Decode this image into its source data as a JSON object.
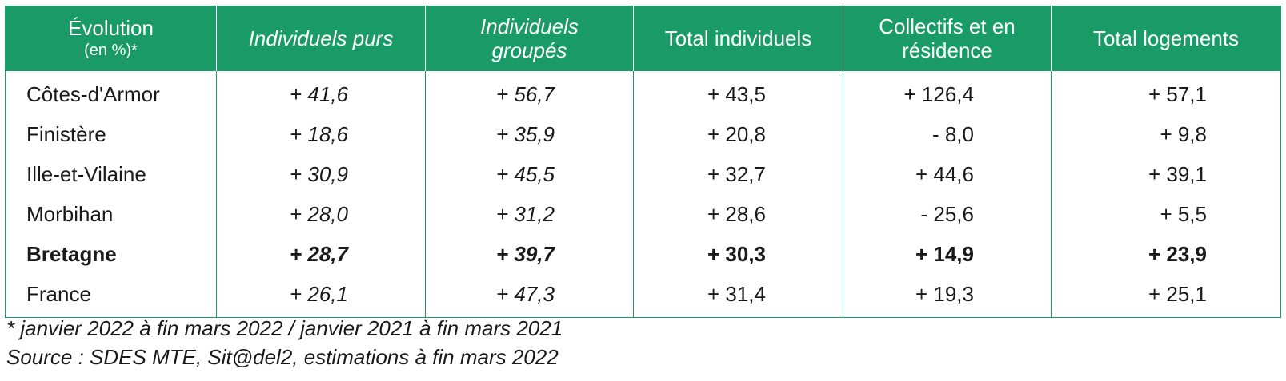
{
  "header": {
    "col0_line1": "Évolution",
    "col0_line2": "(en %)*",
    "col1": "Individuels purs",
    "col2_line1": "Individuels",
    "col2_line2": "groupés",
    "col3": "Total individuels",
    "col4_line1": "Collectifs et en",
    "col4_line2": "résidence",
    "col5": "Total logements"
  },
  "rows": [
    {
      "name": "Côtes-d'Armor",
      "v1": "+ 41,6",
      "v2": "+ 56,7",
      "v3": "+ 43,5",
      "v4": "+ 126,4",
      "v5": "+ 57,1"
    },
    {
      "name": "Finistère",
      "v1": "+ 18,6",
      "v2": "+ 35,9",
      "v3": "+ 20,8",
      "v4": "- 8,0",
      "v5": "+ 9,8"
    },
    {
      "name": "Ille-et-Vilaine",
      "v1": "+ 30,9",
      "v2": "+ 45,5",
      "v3": "+ 32,7",
      "v4": "+ 44,6",
      "v5": "+ 39,1"
    },
    {
      "name": "Morbihan",
      "v1": "+ 28,0",
      "v2": "+ 31,2",
      "v3": "+ 28,6",
      "v4": "- 25,6",
      "v5": "+ 5,5"
    },
    {
      "name": "Bretagne",
      "v1": "+ 28,7",
      "v2": "+ 39,7",
      "v3": "+ 30,3",
      "v4": "+ 14,9",
      "v5": "+ 23,9"
    },
    {
      "name": "France",
      "v1": "+ 26,1",
      "v2": "+ 47,3",
      "v3": "+ 31,4",
      "v4": "+ 19,3",
      "v5": "+ 25,1"
    }
  ],
  "notes": {
    "footnote": "* janvier 2022 à fin mars 2022 / janvier 2021 à fin mars 2021",
    "source": "Source : SDES MTE, Sit@del2, estimations à fin mars 2022"
  },
  "colors": {
    "header_bg": "#1a9a66",
    "header_text": "#ffffff",
    "border": "#1a9a66"
  }
}
